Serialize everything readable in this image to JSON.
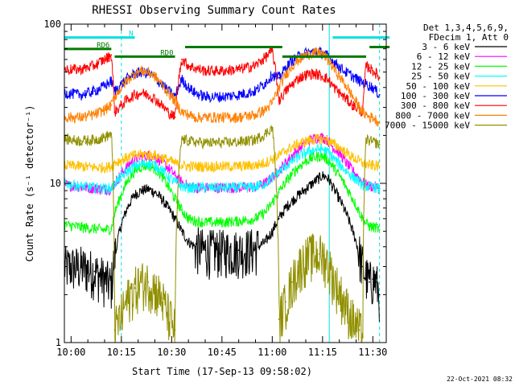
{
  "chart_data": {
    "type": "line",
    "title": "RHESSI Observing Summary Count Rates",
    "xlabel": "Start Time (17-Sep-13 09:58:02)",
    "ylabel": "Count Rate (s⁻¹ detector⁻¹)",
    "x_unit": "minutes after 10:00",
    "xlim": [
      -2,
      94
    ],
    "ylim": [
      1,
      100
    ],
    "y_scale": "log",
    "x_ticks": [
      {
        "value": 0,
        "label": "10:00"
      },
      {
        "value": 15,
        "label": "10:15"
      },
      {
        "value": 30,
        "label": "10:30"
      },
      {
        "value": 45,
        "label": "10:45"
      },
      {
        "value": 60,
        "label": "11:00"
      },
      {
        "value": 75,
        "label": "11:15"
      },
      {
        "value": 90,
        "label": "11:30"
      }
    ],
    "y_ticks": [
      {
        "value": 1,
        "label": "1"
      },
      {
        "value": 10,
        "label": "10"
      },
      {
        "value": 100,
        "label": "100"
      }
    ],
    "legend": {
      "placement": "right",
      "header": [
        "Det 1,3,4,5,6,9,",
        "FDecim 1, Att 0"
      ]
    },
    "annotations": {
      "timestamp": "22-Oct-2021 08:32",
      "bars": [
        {
          "label": "RD6",
          "color": "#007a00",
          "y": 74,
          "from": -2,
          "to": 12
        },
        {
          "label": "RD0",
          "color": "#007a00",
          "y": 66,
          "from": 13,
          "to": 31
        },
        {
          "label": "",
          "color": "#007a00",
          "y": 76,
          "from": 34,
          "to": 63
        },
        {
          "label": "",
          "color": "#007a00",
          "y": 66,
          "from": 63,
          "to": 88
        },
        {
          "label": "",
          "color": "#007a00",
          "y": 76,
          "from": 89,
          "to": 95
        },
        {
          "label": "N",
          "color": "#00e0e0",
          "y": 86,
          "from": -2,
          "to": 19
        },
        {
          "label": "",
          "color": "#00e0e0",
          "y": 86,
          "from": 78,
          "to": 95
        }
      ],
      "vlines": [
        {
          "x": 15,
          "color": "#00e0e0",
          "style": "dashed"
        },
        {
          "x": 77,
          "color": "#00e0e0",
          "style": "solid"
        },
        {
          "x": 92,
          "color": "#00e0e0",
          "style": "dashed"
        }
      ]
    },
    "series": [
      {
        "name": "3 - 6 keV",
        "color": "#000000",
        "x": [
          -2,
          3,
          7,
          10,
          12,
          13,
          15,
          17,
          19,
          21,
          23,
          25,
          27,
          29,
          31,
          33,
          35,
          37,
          40,
          45,
          50,
          55,
          58,
          60,
          62,
          64,
          66,
          68,
          70,
          72,
          74,
          75,
          76,
          77,
          78,
          80,
          82,
          84,
          86,
          87,
          88,
          89,
          90,
          91,
          92
        ],
        "y": [
          3.0,
          3.0,
          2.8,
          2.5,
          2.3,
          3.5,
          5.5,
          7.2,
          8.5,
          9.0,
          9.2,
          8.8,
          8.0,
          7.0,
          6.0,
          5.0,
          4.3,
          4.0,
          3.8,
          3.8,
          3.8,
          3.9,
          4.3,
          5.0,
          6.0,
          7.0,
          7.8,
          8.5,
          9.2,
          10.0,
          10.8,
          11.2,
          11.0,
          10.5,
          9.5,
          8.0,
          6.5,
          5.0,
          3.6,
          3.0,
          2.6,
          2.4,
          2.5,
          2.4,
          2.0
        ]
      },
      {
        "name": "6 - 12 keV",
        "color": "#ff00ff",
        "x": [
          -2,
          3,
          7,
          10,
          12,
          13,
          15,
          17,
          19,
          21,
          23,
          25,
          27,
          29,
          31,
          33,
          35,
          37,
          40,
          45,
          50,
          55,
          58,
          60,
          62,
          64,
          66,
          68,
          70,
          72,
          74,
          75,
          76,
          77,
          78,
          80,
          82,
          84,
          86,
          87,
          88,
          89,
          90,
          91,
          92
        ],
        "y": [
          9.8,
          9.5,
          9.3,
          9.2,
          9.2,
          10.0,
          11.5,
          13.0,
          14.2,
          14.8,
          15.0,
          14.6,
          13.8,
          12.5,
          11.2,
          10.2,
          9.6,
          9.4,
          9.4,
          9.4,
          9.4,
          9.5,
          10.0,
          11.0,
          12.0,
          13.5,
          15.0,
          16.5,
          18.0,
          19.0,
          19.5,
          19.5,
          19.0,
          18.2,
          17.0,
          15.5,
          13.5,
          12.0,
          10.8,
          10.2,
          9.8,
          9.6,
          9.6,
          9.5,
          9.3
        ]
      },
      {
        "name": "12 - 25 keV",
        "color": "#00ff00",
        "x": [
          -2,
          3,
          7,
          10,
          12,
          13,
          15,
          17,
          19,
          21,
          23,
          25,
          27,
          29,
          31,
          33,
          35,
          37,
          40,
          45,
          50,
          55,
          58,
          60,
          62,
          64,
          66,
          68,
          70,
          72,
          74,
          75,
          76,
          77,
          78,
          80,
          82,
          84,
          86,
          87,
          88,
          89,
          90,
          91,
          92
        ],
        "y": [
          5.5,
          5.3,
          5.2,
          5.1,
          5.2,
          6.5,
          8.5,
          10.5,
          12.0,
          12.8,
          13.0,
          12.4,
          11.2,
          9.5,
          8.0,
          6.8,
          6.0,
          5.8,
          5.7,
          5.7,
          5.8,
          6.0,
          6.6,
          7.6,
          8.8,
          10.2,
          11.5,
          12.8,
          13.8,
          14.5,
          14.8,
          14.8,
          14.4,
          13.8,
          12.8,
          11.2,
          9.5,
          8.0,
          6.6,
          6.0,
          5.6,
          5.4,
          5.3,
          5.3,
          5.1
        ]
      },
      {
        "name": "25 - 50 keV",
        "color": "#00ffff",
        "x": [
          -2,
          3,
          7,
          10,
          12,
          13,
          15,
          17,
          19,
          21,
          23,
          25,
          27,
          29,
          31,
          33,
          35,
          37,
          40,
          45,
          50,
          55,
          58,
          60,
          62,
          64,
          66,
          68,
          70,
          72,
          74,
          75,
          76,
          77,
          78,
          80,
          82,
          84,
          86,
          87,
          88,
          89,
          90,
          91,
          92
        ],
        "y": [
          10.0,
          9.6,
          9.4,
          9.3,
          9.3,
          10.0,
          11.0,
          12.0,
          12.8,
          13.2,
          13.4,
          13.0,
          12.2,
          11.0,
          10.2,
          9.6,
          9.4,
          9.4,
          9.4,
          9.4,
          9.4,
          9.5,
          10.0,
          10.8,
          11.8,
          12.8,
          13.8,
          14.8,
          15.6,
          16.2,
          16.4,
          16.4,
          16.0,
          15.4,
          14.6,
          13.2,
          12.0,
          11.0,
          10.2,
          9.8,
          9.6,
          9.5,
          9.5,
          9.4,
          9.2
        ]
      },
      {
        "name": "50 - 100 keV",
        "color": "#ffc000",
        "x": [
          -2,
          3,
          7,
          10,
          12,
          13,
          15,
          17,
          19,
          21,
          23,
          25,
          27,
          29,
          31,
          33,
          35,
          37,
          40,
          45,
          50,
          55,
          58,
          60,
          62,
          64,
          66,
          68,
          70,
          72,
          74,
          75,
          76,
          77,
          78,
          80,
          82,
          84,
          86,
          87,
          88,
          89,
          90,
          91,
          92
        ],
        "y": [
          13.0,
          12.8,
          12.6,
          12.6,
          12.8,
          13.5,
          14.0,
          14.6,
          15.0,
          15.2,
          15.2,
          15.0,
          14.6,
          14.0,
          13.4,
          13.0,
          12.8,
          12.8,
          12.8,
          12.8,
          12.8,
          13.0,
          13.5,
          14.2,
          15.0,
          16.0,
          17.0,
          17.8,
          18.4,
          18.8,
          19.0,
          19.0,
          18.8,
          18.4,
          17.8,
          16.8,
          15.6,
          14.6,
          13.8,
          13.4,
          13.2,
          13.0,
          13.0,
          12.9,
          12.8
        ]
      },
      {
        "name": "100 - 300 keV",
        "color": "#0000ff",
        "x": [
          -2,
          3,
          7,
          10,
          12,
          13,
          15,
          17,
          19,
          21,
          23,
          25,
          27,
          29,
          31,
          33,
          35,
          37,
          40,
          45,
          50,
          55,
          58,
          60,
          62,
          64,
          66,
          68,
          70,
          72,
          74,
          75,
          76,
          77,
          78,
          80,
          82,
          84,
          86,
          87,
          88,
          89,
          90,
          91,
          92
        ],
        "y": [
          37.0,
          36.0,
          38.0,
          41.0,
          44.0,
          38.0,
          42.0,
          46.0,
          49.0,
          50.0,
          49.0,
          46.0,
          42.0,
          38.0,
          35.0,
          45.0,
          40.0,
          37.0,
          35.0,
          35.0,
          36.0,
          38.0,
          43.0,
          48.0,
          46.0,
          53.0,
          59.0,
          63.0,
          66.0,
          67.0,
          67.0,
          66.0,
          64.0,
          62.0,
          59.0,
          54.0,
          50.0,
          47.0,
          44.0,
          43.0,
          42.0,
          41.0,
          40.0,
          38.0,
          36.0
        ]
      },
      {
        "name": "300 - 800 keV",
        "color": "#ff0000",
        "x": [
          -2,
          3,
          7,
          10,
          12,
          13,
          15,
          17,
          19,
          21,
          23,
          25,
          27,
          29,
          31,
          33,
          35,
          37,
          40,
          45,
          50,
          55,
          58,
          60,
          62,
          64,
          66,
          68,
          70,
          72,
          74,
          75,
          76,
          77,
          78,
          80,
          82,
          84,
          86,
          87,
          88,
          89,
          90,
          91,
          92
        ],
        "y": [
          52.0,
          52.0,
          55.0,
          60.0,
          64.0,
          28.0,
          31.0,
          34.0,
          36.0,
          37.0,
          36.0,
          34.0,
          31.0,
          28.0,
          26.0,
          60.0,
          55.0,
          53.0,
          51.0,
          51.0,
          52.0,
          55.0,
          62.0,
          68.0,
          33.0,
          38.0,
          42.0,
          46.0,
          48.0,
          49.0,
          48.0,
          47.0,
          46.0,
          44.0,
          41.0,
          37.0,
          34.0,
          31.0,
          29.0,
          28.0,
          55.0,
          53.0,
          51.0,
          49.0,
          46.0
        ]
      },
      {
        "name": "800 - 7000 keV",
        "color": "#ff8000",
        "x": [
          -2,
          3,
          7,
          10,
          12,
          13,
          15,
          17,
          19,
          21,
          23,
          25,
          27,
          29,
          31,
          33,
          35,
          37,
          40,
          45,
          50,
          55,
          58,
          60,
          62,
          64,
          66,
          68,
          70,
          72,
          74,
          75,
          76,
          77,
          78,
          80,
          82,
          84,
          86,
          87,
          88,
          89,
          90,
          91,
          92
        ],
        "y": [
          26.0,
          26.0,
          27.0,
          29.0,
          31.0,
          35.0,
          40.0,
          45.0,
          49.0,
          51.0,
          50.0,
          47.0,
          42.0,
          37.0,
          33.0,
          28.0,
          27.0,
          26.0,
          26.0,
          26.0,
          26.0,
          27.0,
          29.0,
          32.0,
          40.0,
          48.0,
          55.0,
          60.0,
          64.0,
          66.0,
          66.0,
          65.0,
          62.0,
          58.0,
          54.0,
          47.0,
          41.0,
          35.0,
          30.0,
          28.0,
          27.0,
          26.0,
          26.0,
          25.0,
          24.0
        ]
      },
      {
        "name": "7000 - 15000 keV",
        "color": "#909000",
        "x": [
          -2,
          3,
          7,
          10,
          12,
          13,
          15,
          17,
          19,
          21,
          23,
          25,
          27,
          29,
          31,
          33,
          35,
          37,
          40,
          45,
          50,
          55,
          58,
          60,
          62,
          64,
          66,
          68,
          70,
          72,
          74,
          75,
          76,
          77,
          78,
          80,
          82,
          84,
          86,
          87,
          88,
          89,
          90,
          91,
          92
        ],
        "y": [
          19.0,
          18.5,
          18.8,
          19.5,
          20.5,
          1.2,
          1.5,
          1.9,
          2.2,
          2.4,
          2.4,
          2.2,
          1.9,
          1.5,
          1.2,
          19.0,
          18.5,
          18.2,
          18.0,
          18.0,
          18.2,
          18.8,
          20.5,
          22.5,
          1.4,
          1.8,
          2.4,
          3.0,
          3.4,
          3.6,
          3.6,
          3.5,
          3.3,
          3.0,
          2.6,
          2.1,
          1.7,
          1.4,
          1.2,
          1.1,
          19.0,
          18.5,
          18.2,
          18.0,
          17.5
        ]
      }
    ]
  }
}
